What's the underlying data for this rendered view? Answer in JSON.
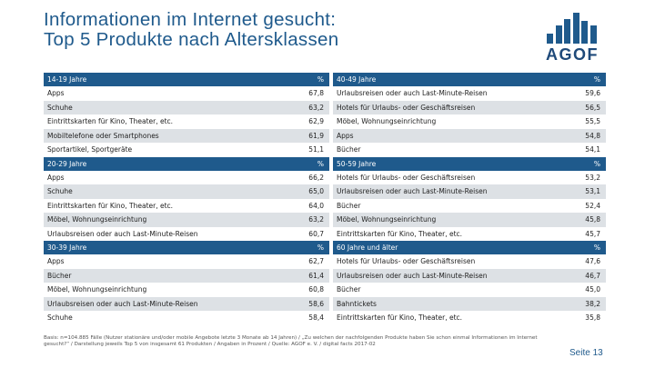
{
  "title": {
    "line1": "Informationen im Internet gesucht:",
    "line2": "Top 5 Produkte nach Altersklassen"
  },
  "logo": {
    "text": "AGOF",
    "bar_heights_percent": [
      30,
      55,
      75,
      95,
      70,
      55
    ],
    "color": "#1f5a8c"
  },
  "pct_label": "%",
  "rows": [
    {
      "type": "header",
      "left": {
        "label": "14-19 Jahre",
        "pct": "%"
      },
      "right": {
        "label": "40-49 Jahre",
        "pct": "%"
      }
    },
    {
      "type": "data",
      "left": {
        "label": "Apps",
        "value": "67,8"
      },
      "right": {
        "label": "Urlaubsreisen oder auch Last-Minute-Reisen",
        "value": "59,6"
      }
    },
    {
      "type": "data",
      "left": {
        "label": "Schuhe",
        "value": "63,2"
      },
      "right": {
        "label": "Hotels für Urlaubs- oder Geschäftsreisen",
        "value": "56,5"
      }
    },
    {
      "type": "data",
      "left": {
        "label": "Eintrittskarten für Kino, Theater, etc.",
        "value": "62,9"
      },
      "right": {
        "label": "Möbel, Wohnungseinrichtung",
        "value": "55,5"
      }
    },
    {
      "type": "data",
      "left": {
        "label": "Mobiltelefone oder Smartphones",
        "value": "61,9"
      },
      "right": {
        "label": "Apps",
        "value": "54,8"
      }
    },
    {
      "type": "data",
      "left": {
        "label": "Sportartikel, Sportgeräte",
        "value": "51,1"
      },
      "right": {
        "label": "Bücher",
        "value": "54,1"
      }
    },
    {
      "type": "header",
      "left": {
        "label": "20-29 Jahre",
        "pct": "%"
      },
      "right": {
        "label": "50-59 Jahre",
        "pct": "%"
      }
    },
    {
      "type": "data",
      "left": {
        "label": "Apps",
        "value": "66,2"
      },
      "right": {
        "label": "Hotels für Urlaubs- oder Geschäftsreisen",
        "value": "53,2"
      }
    },
    {
      "type": "data",
      "left": {
        "label": "Schuhe",
        "value": "65,0"
      },
      "right": {
        "label": "Urlaubsreisen oder auch Last-Minute-Reisen",
        "value": "53,1"
      }
    },
    {
      "type": "data",
      "left": {
        "label": "Eintrittskarten für Kino, Theater, etc.",
        "value": "64,0"
      },
      "right": {
        "label": "Bücher",
        "value": "52,4"
      }
    },
    {
      "type": "data",
      "left": {
        "label": "Möbel, Wohnungseinrichtung",
        "value": "63,2"
      },
      "right": {
        "label": "Möbel, Wohnungseinrichtung",
        "value": "45,8"
      }
    },
    {
      "type": "data",
      "left": {
        "label": "Urlaubsreisen oder auch Last-Minute-Reisen",
        "value": "60,7"
      },
      "right": {
        "label": "Eintrittskarten für Kino, Theater, etc.",
        "value": "45,7"
      }
    },
    {
      "type": "header",
      "left": {
        "label": "30-39 Jahre",
        "pct": "%"
      },
      "right": {
        "label": "60 Jahre und älter",
        "pct": "%"
      }
    },
    {
      "type": "data",
      "left": {
        "label": "Apps",
        "value": "62,7"
      },
      "right": {
        "label": "Hotels für Urlaubs- oder Geschäftsreisen",
        "value": "47,6"
      }
    },
    {
      "type": "data",
      "left": {
        "label": "Bücher",
        "value": "61,4"
      },
      "right": {
        "label": "Urlaubsreisen oder auch Last-Minute-Reisen",
        "value": "46,7"
      }
    },
    {
      "type": "data",
      "left": {
        "label": "Möbel, Wohnungseinrichtung",
        "value": "60,8"
      },
      "right": {
        "label": "Bücher",
        "value": "45,0"
      }
    },
    {
      "type": "data",
      "left": {
        "label": "Urlaubsreisen oder auch Last-Minute-Reisen",
        "value": "58,6"
      },
      "right": {
        "label": "Bahntickets",
        "value": "38,2"
      }
    },
    {
      "type": "data",
      "left": {
        "label": "Schuhe",
        "value": "58,4"
      },
      "right": {
        "label": "Eintrittskarten für Kino, Theater, etc.",
        "value": "35,8"
      }
    }
  ],
  "footnote": "Basis: n=104.885 Fälle (Nutzer stationäre und/oder mobile Angebote letzte 3 Monate ab 14 Jahren) / „Zu welchen der nachfolgenden Produkte haben Sie schon einmal Informationen im Internet gesucht?“ / Darstellung jeweils Top 5 von insgesamt 61 Produkten / Angaben in Prozent / Quelle: AGOF e. V. / digital facts 2017-02",
  "page_label": "Seite 13",
  "colors": {
    "header_bg": "#1f5a8c",
    "title": "#1f5a8c",
    "row_alt": "#dde1e5"
  }
}
